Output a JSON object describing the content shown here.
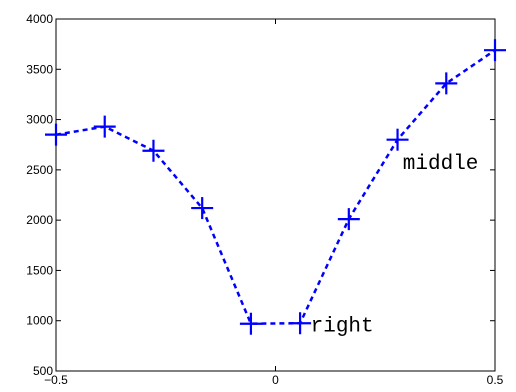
{
  "chart_data": {
    "type": "line",
    "x": [
      -0.5,
      -0.389,
      -0.278,
      -0.167,
      -0.056,
      0.056,
      0.167,
      0.278,
      0.389,
      0.5
    ],
    "series": [
      {
        "values": [
          2850,
          2930,
          2690,
          2120,
          970,
          975,
          2010,
          2800,
          3360,
          3690
        ]
      }
    ],
    "xlim": [
      -0.5,
      0.5
    ],
    "ylim": [
      500,
      4000
    ],
    "xticks": [
      -0.5,
      0,
      0.5
    ],
    "yticks": [
      500,
      1000,
      1500,
      2000,
      2500,
      3000,
      3500,
      4000
    ],
    "xtick_labels": [
      "−0.5",
      "0",
      "0.5"
    ],
    "ytick_labels": [
      "500",
      "1000",
      "1500",
      "2000",
      "2500",
      "3000",
      "3500",
      "4000"
    ],
    "line_color": "#0000ff",
    "line_style": "dashed",
    "marker": "plus",
    "grid": false,
    "annotations": [
      {
        "text": "right",
        "x": 0.08,
        "y": 960
      },
      {
        "text": "middle",
        "x": 0.29,
        "y": 2580
      }
    ]
  }
}
